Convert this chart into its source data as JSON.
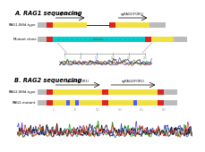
{
  "title_A": "A. RAG1 sequencing",
  "title_B": "B. RAG2 sequencing",
  "title_fontsize": 4.8,
  "bg_color": "#ffffff",
  "label_fontsize": 2.8,
  "anno_fontsize": 2.5,
  "seq_fontsize": 2.2,
  "row_A_wt_label": "RAG1-Wild-type",
  "row_A_mut_label": "Mutant clone",
  "row_B_wt_label": "RAG2-Wild-type",
  "row_B_mut_label": "RAG2-mutant",
  "sgRNA_A_left": "sgRAG1(FOR1)",
  "sgRNA_A_right": "sgRAG1(FOR1)",
  "sgRNA_B_left": "sgRAG2(FOR1)",
  "sgRNA_B_right": "sgRAG2(FOR1)",
  "yellow": "#f0e040",
  "red": "#dd2222",
  "cyan": "#00d0d0",
  "blue_mark": "#5555ff",
  "green": "#00aa00",
  "blue_chrom": "#3333cc",
  "red_chrom": "#cc2222",
  "black": "#000000",
  "gray": "#999999",
  "light_gray": "#bbbbbb",
  "dark_gray": "#555555"
}
